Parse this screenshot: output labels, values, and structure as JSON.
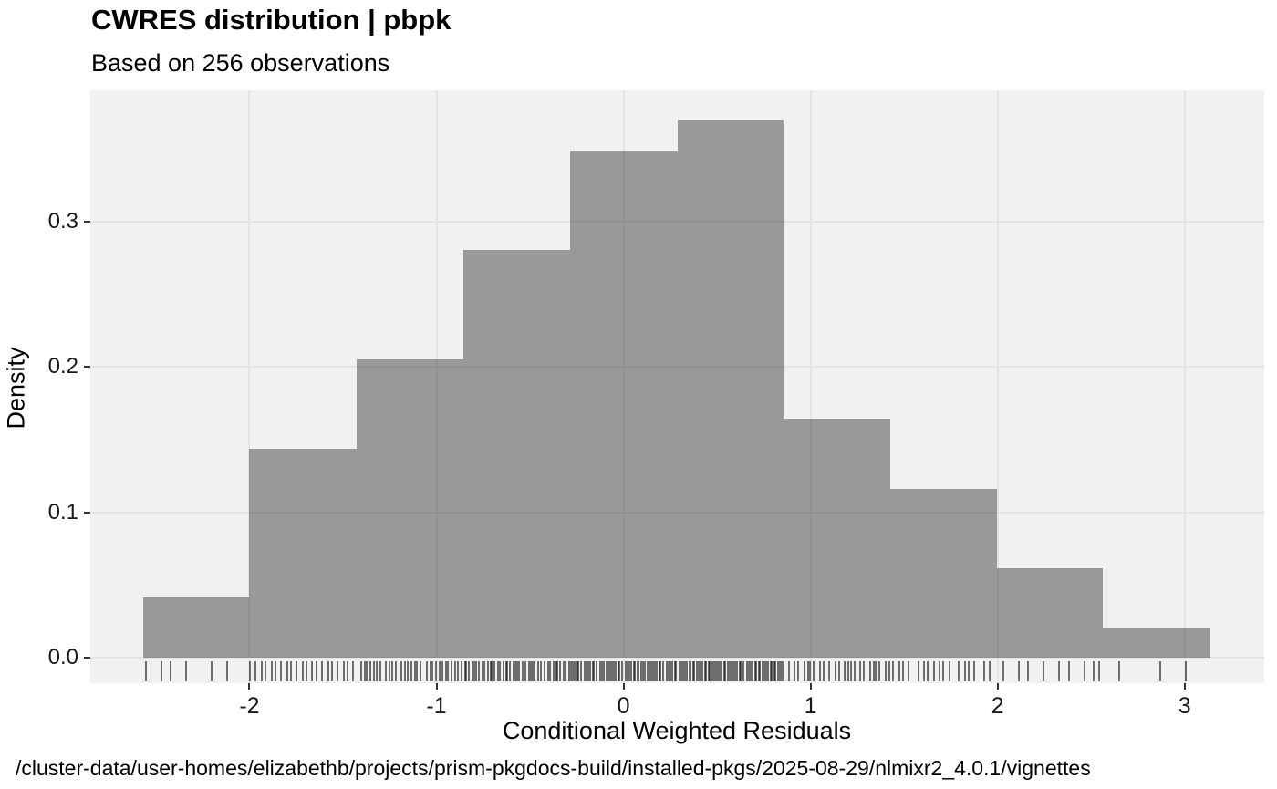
{
  "caption": {
    "path": "/cluster-data/user-homes/elizabethb/projects/prism-pkgdocs-build/installed-pkgs/2025-08-29/nlmixr2_4.0.1/vignettes"
  },
  "chart_data": {
    "type": "bar",
    "subtype": "histogram-density-with-rug",
    "title": "CWRES distribution | pbpk",
    "subtitle": "Based on 256 observations",
    "xlabel": "Conditional Weighted Residuals",
    "ylabel": "Density",
    "n_observations": 256,
    "x_ticks": [
      -2,
      -1,
      0,
      1,
      2,
      3
    ],
    "x_tick_labels": [
      "-2",
      "-1",
      "0",
      "1",
      "2",
      "3"
    ],
    "y_ticks": [
      0.0,
      0.1,
      0.2,
      0.3
    ],
    "y_tick_labels": [
      "0.0",
      "0.1",
      "0.2",
      "0.3"
    ],
    "xlim": [
      -2.851,
      3.426
    ],
    "ylim": [
      -0.0176,
      0.3904
    ],
    "grid": "major-on",
    "legend_position": "none",
    "bin_width": 0.5705,
    "bins": [
      {
        "x0": -2.567,
        "x1": -2.0,
        "density": 0.0411,
        "count": 6
      },
      {
        "x0": -2.0,
        "x1": -1.426,
        "density": 0.1438,
        "count": 21
      },
      {
        "x0": -1.426,
        "x1": -0.856,
        "density": 0.2054,
        "count": 30
      },
      {
        "x0": -0.856,
        "x1": -0.285,
        "density": 0.2808,
        "count": 41
      },
      {
        "x0": -0.285,
        "x1": 0.29,
        "density": 0.3492,
        "count": 51
      },
      {
        "x0": 0.29,
        "x1": 0.856,
        "density": 0.3698,
        "count": 54
      },
      {
        "x0": 0.856,
        "x1": 1.426,
        "density": 0.1643,
        "count": 24
      },
      {
        "x0": 1.426,
        "x1": 1.997,
        "density": 0.1164,
        "count": 17
      },
      {
        "x0": 1.997,
        "x1": 2.562,
        "density": 0.0616,
        "count": 9
      },
      {
        "x0": 2.562,
        "x1": 3.138,
        "density": 0.0205,
        "count": 3
      }
    ],
    "rug": {
      "shown": true,
      "n": 256,
      "note": "one tick per observation, drawn just below y=0"
    },
    "colors": {
      "bar_fill": "#999999",
      "bar_fill_rgba": "rgba(0,0,0,0.365)",
      "panel_bg": "#f1f1f1",
      "grid": "#e4e4e4",
      "rug": "rgba(0,0,0,0.55)",
      "tick": "#333333",
      "text": "#000000"
    }
  }
}
